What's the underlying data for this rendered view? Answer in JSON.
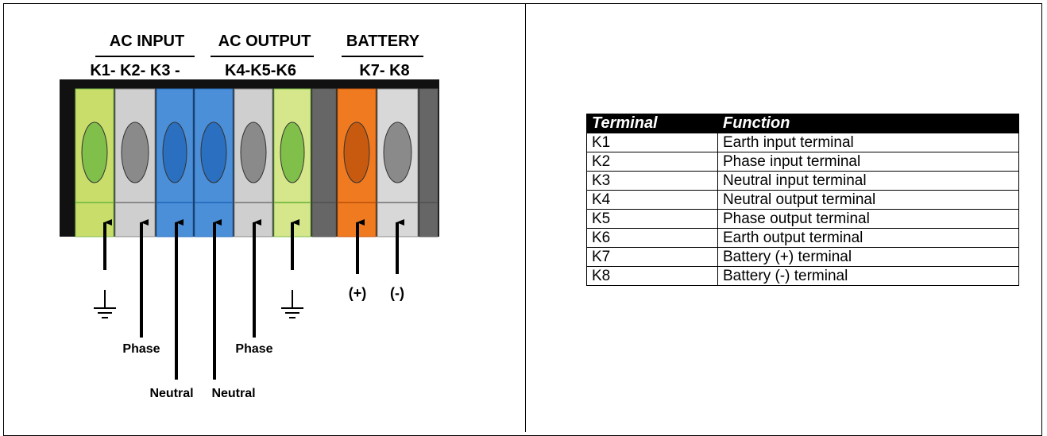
{
  "diagram": {
    "groups": [
      {
        "title": "AC INPUT",
        "terminals": "K1- K2- K3 -"
      },
      {
        "title": "AC OUTPUT",
        "terminals": "K4-K5-K6"
      },
      {
        "title": "BATTERY",
        "terminals": "K7- K8"
      }
    ],
    "wire_labels": [
      "Phase",
      "Neutral",
      "Neutral",
      "Phase",
      "(+)",
      "(-)"
    ]
  },
  "table": {
    "header": [
      "Terminal",
      "Function"
    ],
    "rows": [
      [
        "K1",
        "Earth input terminal"
      ],
      [
        "K2",
        "Phase input terminal"
      ],
      [
        "K3",
        "Neutral input terminal"
      ],
      [
        "K4",
        "Neutral output terminal"
      ],
      [
        "K5",
        "Phase output terminal"
      ],
      [
        "K6",
        "Earth output terminal"
      ],
      [
        "K7",
        "Battery (+) terminal"
      ],
      [
        "K8",
        "Battery (-) terminal"
      ]
    ]
  }
}
